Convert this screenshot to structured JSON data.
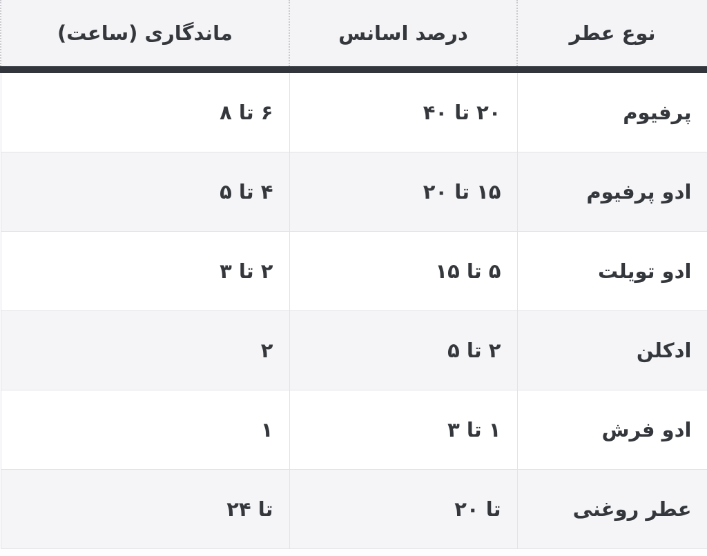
{
  "chart_data": {
    "type": "table",
    "title": "",
    "direction": "rtl",
    "columns": [
      "نوع عطر",
      "درصد اسانس",
      "ماندگاری (ساعت)"
    ],
    "column_keys": [
      "type",
      "essence-percent",
      "longevity-hours"
    ],
    "rows": [
      [
        "پرفیوم",
        "۲۰ تا ۴۰",
        "۶ تا ۸"
      ],
      [
        "ادو پرفیوم",
        "۱۵ تا ۲۰",
        "۴ تا ۵"
      ],
      [
        "ادو تویلت",
        "۵ تا ۱۵",
        "۲ تا ۳"
      ],
      [
        "ادکلن",
        "۲ تا ۵",
        "۲"
      ],
      [
        "ادو فرش",
        "۱ تا ۳",
        "۱"
      ],
      [
        "عطر روغنی",
        "تا ۲۰",
        "تا ۲۴"
      ]
    ],
    "rows_translated_values": null,
    "layout": {
      "header_align": "center",
      "cell_align": "right",
      "zebra_striping": true
    }
  },
  "colors": {
    "header_bg": "#f4f4f6",
    "header_divider_dark": "#32353c",
    "header_separator_dotted": "#c9c9cf",
    "row_bg_odd": "#ffffff",
    "row_bg_even": "#f5f5f7",
    "body_border": "#e3e3e7",
    "text": "#34373c",
    "page_bg": "#fdfdfe"
  }
}
